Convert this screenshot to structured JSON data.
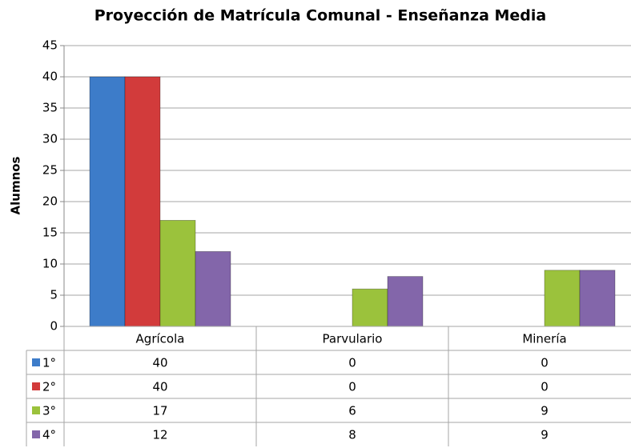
{
  "chart_data": {
    "type": "bar",
    "title": "Proyección de Matrícula Comunal -  Enseñanza Media",
    "y_label": "Alumnos",
    "categories": [
      "Agrícola",
      "Parvulario",
      "Minería"
    ],
    "series": [
      {
        "name": "1°",
        "color": "#3d7cc9",
        "values": [
          40,
          0,
          0
        ]
      },
      {
        "name": "2°",
        "color": "#d23b3b",
        "values": [
          40,
          0,
          0
        ]
      },
      {
        "name": "3°",
        "color": "#9bc23c",
        "values": [
          17,
          6,
          9
        ]
      },
      {
        "name": "4°",
        "color": "#8366aa",
        "values": [
          12,
          8,
          9
        ]
      }
    ],
    "ylim": [
      0,
      45
    ],
    "yticks": [
      0,
      5,
      10,
      15,
      20,
      25,
      30,
      35,
      40,
      45
    ],
    "grid": true,
    "data_table": true
  }
}
